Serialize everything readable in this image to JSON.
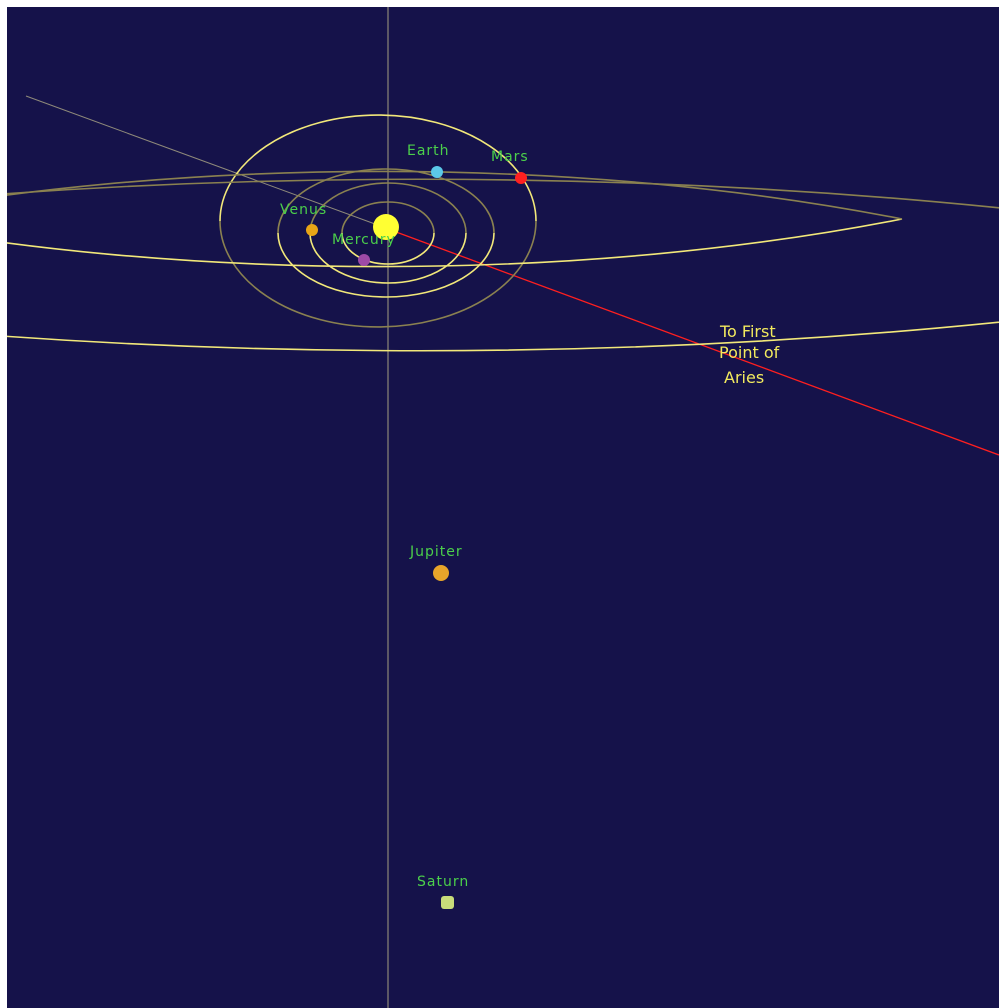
{
  "colors": {
    "background": "#15124a",
    "orbit_bright": "#f2e87a",
    "orbit_dim": "#8a8150",
    "axis_line": "#a39e80",
    "aries_line": "#ff1f1f",
    "label_green": "#4bcf4b",
    "aries_label": "#f2ea5e",
    "sun": "#ffff33"
  },
  "sun": {
    "name": "Sun"
  },
  "planets": [
    {
      "name": "Mercury",
      "label": "Mercury",
      "color": "#9d4aa6"
    },
    {
      "name": "Venus",
      "label": "Venus",
      "color": "#e8a516"
    },
    {
      "name": "Earth",
      "label": "Earth",
      "color": "#5bc8e8"
    },
    {
      "name": "Mars",
      "label": "Mars",
      "color": "#ff2020"
    },
    {
      "name": "Jupiter",
      "label": "Jupiter",
      "color": "#e8a52a"
    },
    {
      "name": "Saturn",
      "label": "Saturn",
      "color": "#c8dc7a"
    }
  ],
  "aries": {
    "line1": "To First",
    "line2": "Point of",
    "line3": "Aries"
  }
}
